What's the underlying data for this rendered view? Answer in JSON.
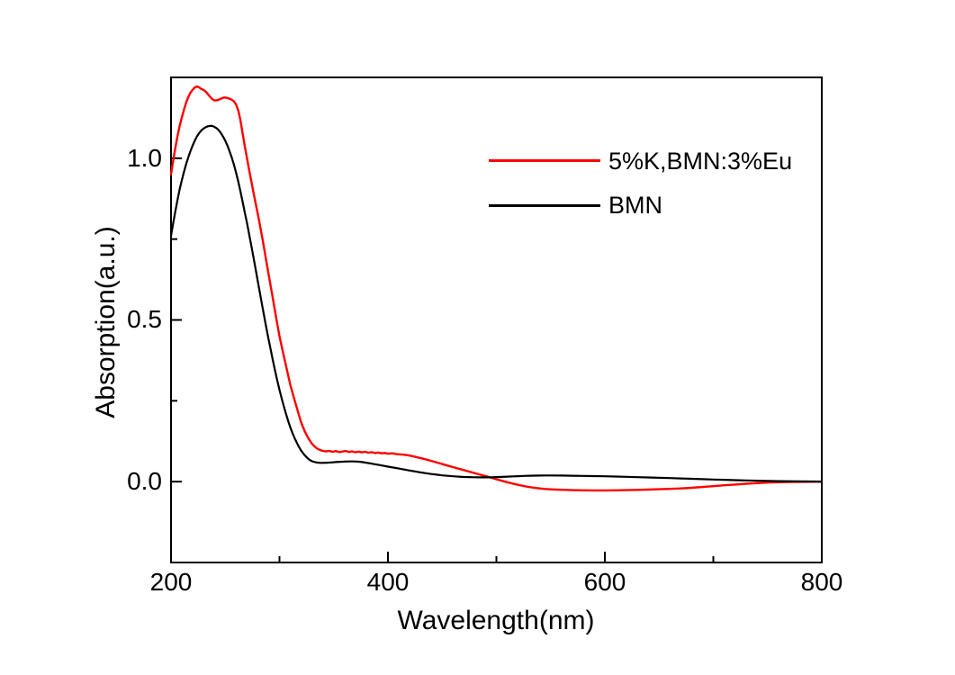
{
  "figure": {
    "background": "#ffffff",
    "axis_color": "#000000",
    "text_color": "#000000"
  },
  "legend": {
    "items": [
      {
        "label": "5%K,BMN:3%Eu",
        "color": "#ff0000"
      },
      {
        "label": "BMN",
        "color": "#000000"
      }
    ]
  },
  "chart_data": {
    "type": "line",
    "title": "",
    "xlabel": "Wavelength(nm)",
    "ylabel": "Absorption(a.u.)",
    "xlim": [
      200,
      800
    ],
    "ylim": [
      -0.25,
      1.25
    ],
    "grid": false,
    "legend_position": "inside upper right",
    "x_major_ticks": [
      {
        "value": 200,
        "label": "200"
      },
      {
        "value": 400,
        "label": "400"
      },
      {
        "value": 600,
        "label": "600"
      },
      {
        "value": 800,
        "label": "800"
      }
    ],
    "x_minor_ticks": [
      300,
      500,
      700
    ],
    "y_major_ticks": [
      {
        "value": 0.0,
        "label": "0.0"
      },
      {
        "value": 0.5,
        "label": "0.5"
      },
      {
        "value": 1.0,
        "label": "1.0"
      }
    ],
    "y_minor_ticks": [
      0.25,
      0.75
    ],
    "series": [
      {
        "name": "5%K,BMN:3%Eu",
        "color": "#ff0000",
        "points": [
          [
            200,
            0.95
          ],
          [
            202,
            0.992
          ],
          [
            204,
            1.032
          ],
          [
            206,
            1.068
          ],
          [
            208,
            1.1
          ],
          [
            210,
            1.127
          ],
          [
            212,
            1.151
          ],
          [
            214,
            1.173
          ],
          [
            216,
            1.19
          ],
          [
            218,
            1.203
          ],
          [
            220,
            1.212
          ],
          [
            222,
            1.219
          ],
          [
            224,
            1.222
          ],
          [
            226,
            1.219
          ],
          [
            228,
            1.214
          ],
          [
            230,
            1.211
          ],
          [
            232,
            1.206
          ],
          [
            234,
            1.198
          ],
          [
            236,
            1.19
          ],
          [
            238,
            1.183
          ],
          [
            240,
            1.179
          ],
          [
            242,
            1.179
          ],
          [
            244,
            1.181
          ],
          [
            246,
            1.184
          ],
          [
            248,
            1.187
          ],
          [
            250,
            1.188
          ],
          [
            252,
            1.186
          ],
          [
            254,
            1.184
          ],
          [
            256,
            1.181
          ],
          [
            258,
            1.176
          ],
          [
            260,
            1.166
          ],
          [
            262,
            1.148
          ],
          [
            264,
            1.118
          ],
          [
            266,
            1.078
          ],
          [
            268,
            1.038
          ],
          [
            270,
            1.0
          ],
          [
            272,
            0.964
          ],
          [
            274,
            0.929
          ],
          [
            276,
            0.894
          ],
          [
            278,
            0.861
          ],
          [
            280,
            0.828
          ],
          [
            282,
            0.793
          ],
          [
            284,
            0.757
          ],
          [
            286,
            0.719
          ],
          [
            288,
            0.68
          ],
          [
            290,
            0.641
          ],
          [
            292,
            0.602
          ],
          [
            294,
            0.564
          ],
          [
            296,
            0.525
          ],
          [
            298,
            0.487
          ],
          [
            300,
            0.45
          ],
          [
            302,
            0.419
          ],
          [
            304,
            0.389
          ],
          [
            306,
            0.359
          ],
          [
            308,
            0.329
          ],
          [
            310,
            0.3
          ],
          [
            312,
            0.275
          ],
          [
            314,
            0.251
          ],
          [
            316,
            0.228
          ],
          [
            318,
            0.205
          ],
          [
            320,
            0.183
          ],
          [
            322,
            0.166
          ],
          [
            324,
            0.151
          ],
          [
            326,
            0.138
          ],
          [
            328,
            0.127
          ],
          [
            330,
            0.117
          ],
          [
            332,
            0.11
          ],
          [
            334,
            0.104
          ],
          [
            336,
            0.1
          ],
          [
            338,
            0.097
          ],
          [
            340,
            0.095
          ],
          [
            343,
            0.0935
          ],
          [
            346,
            0.0952
          ],
          [
            349,
            0.0922
          ],
          [
            352,
            0.0945
          ],
          [
            355,
            0.0915
          ],
          [
            358,
            0.0932
          ],
          [
            361,
            0.0948
          ],
          [
            364,
            0.0918
          ],
          [
            367,
            0.0938
          ],
          [
            370,
            0.0908
          ],
          [
            373,
            0.0928
          ],
          [
            376,
            0.0905
          ],
          [
            379,
            0.0922
          ],
          [
            382,
            0.0895
          ],
          [
            385,
            0.0912
          ],
          [
            388,
            0.0885
          ],
          [
            391,
            0.0902
          ],
          [
            394,
            0.0875
          ],
          [
            397,
            0.0888
          ],
          [
            400,
            0.0865
          ],
          [
            404,
            0.0875
          ],
          [
            408,
            0.0852
          ],
          [
            412,
            0.0842
          ],
          [
            416,
            0.0828
          ],
          [
            420,
            0.0805
          ],
          [
            424,
            0.0778
          ],
          [
            428,
            0.0745
          ],
          [
            432,
            0.0712
          ],
          [
            436,
            0.0678
          ],
          [
            440,
            0.0641
          ],
          [
            444,
            0.0602
          ],
          [
            448,
            0.0563
          ],
          [
            452,
            0.0524
          ],
          [
            456,
            0.0487
          ],
          [
            460,
            0.0449
          ],
          [
            464,
            0.0412
          ],
          [
            468,
            0.0375
          ],
          [
            472,
            0.0338
          ],
          [
            476,
            0.0301
          ],
          [
            480,
            0.0264
          ],
          [
            484,
            0.0226
          ],
          [
            488,
            0.0188
          ],
          [
            492,
            0.0151
          ],
          [
            496,
            0.0113
          ],
          [
            500,
            0.0075
          ],
          [
            505,
            0.0028
          ],
          [
            510,
            -0.0018
          ],
          [
            515,
            -0.006
          ],
          [
            520,
            -0.0099
          ],
          [
            525,
            -0.0134
          ],
          [
            530,
            -0.0164
          ],
          [
            535,
            -0.019
          ],
          [
            540,
            -0.0211
          ],
          [
            545,
            -0.0227
          ],
          [
            550,
            -0.0238
          ],
          [
            555,
            -0.0246
          ],
          [
            560,
            -0.0252
          ],
          [
            570,
            -0.0262
          ],
          [
            580,
            -0.0268
          ],
          [
            590,
            -0.027
          ],
          [
            600,
            -0.027
          ],
          [
            610,
            -0.0267
          ],
          [
            620,
            -0.0262
          ],
          [
            630,
            -0.0255
          ],
          [
            640,
            -0.0246
          ],
          [
            650,
            -0.0236
          ],
          [
            660,
            -0.0224
          ],
          [
            670,
            -0.0209
          ],
          [
            680,
            -0.0189
          ],
          [
            690,
            -0.0165
          ],
          [
            700,
            -0.0139
          ],
          [
            710,
            -0.0113
          ],
          [
            720,
            -0.0089
          ],
          [
            730,
            -0.0066
          ],
          [
            740,
            -0.0046
          ],
          [
            750,
            -0.003
          ],
          [
            760,
            -0.0019
          ],
          [
            770,
            -0.0011
          ],
          [
            780,
            -0.0006
          ],
          [
            790,
            -0.0003
          ],
          [
            800,
            -0.0002
          ]
        ]
      },
      {
        "name": "BMN",
        "color": "#000000",
        "points": [
          [
            200,
            0.76
          ],
          [
            202,
            0.799
          ],
          [
            204,
            0.836
          ],
          [
            206,
            0.871
          ],
          [
            208,
            0.904
          ],
          [
            210,
            0.933
          ],
          [
            212,
            0.959
          ],
          [
            214,
            0.983
          ],
          [
            216,
            1.004
          ],
          [
            218,
            1.023
          ],
          [
            220,
            1.04
          ],
          [
            222,
            1.055
          ],
          [
            224,
            1.068
          ],
          [
            226,
            1.078
          ],
          [
            228,
            1.086
          ],
          [
            230,
            1.092
          ],
          [
            232,
            1.096
          ],
          [
            234,
            1.099
          ],
          [
            236,
            1.1
          ],
          [
            238,
            1.1
          ],
          [
            240,
            1.097
          ],
          [
            242,
            1.093
          ],
          [
            244,
            1.087
          ],
          [
            246,
            1.078
          ],
          [
            248,
            1.067
          ],
          [
            250,
            1.054
          ],
          [
            252,
            1.039
          ],
          [
            254,
            1.021
          ],
          [
            256,
            1.002
          ],
          [
            258,
            0.98
          ],
          [
            260,
            0.955
          ],
          [
            262,
            0.928
          ],
          [
            264,
            0.898
          ],
          [
            266,
            0.866
          ],
          [
            268,
            0.833
          ],
          [
            270,
            0.8
          ],
          [
            272,
            0.765
          ],
          [
            274,
            0.73
          ],
          [
            276,
            0.694
          ],
          [
            278,
            0.657
          ],
          [
            280,
            0.62
          ],
          [
            282,
            0.583
          ],
          [
            284,
            0.546
          ],
          [
            286,
            0.51
          ],
          [
            288,
            0.474
          ],
          [
            290,
            0.44
          ],
          [
            292,
            0.406
          ],
          [
            294,
            0.373
          ],
          [
            296,
            0.342
          ],
          [
            298,
            0.312
          ],
          [
            300,
            0.284
          ],
          [
            302,
            0.258
          ],
          [
            304,
            0.233
          ],
          [
            306,
            0.21
          ],
          [
            308,
            0.188
          ],
          [
            310,
            0.168
          ],
          [
            312,
            0.15
          ],
          [
            314,
            0.134
          ],
          [
            316,
            0.12
          ],
          [
            318,
            0.107
          ],
          [
            320,
            0.096
          ],
          [
            322,
            0.087
          ],
          [
            324,
            0.079
          ],
          [
            326,
            0.072
          ],
          [
            328,
            0.067
          ],
          [
            330,
            0.063
          ],
          [
            332,
            0.061
          ],
          [
            334,
            0.0595
          ],
          [
            336,
            0.0585
          ],
          [
            338,
            0.058
          ],
          [
            340,
            0.058
          ],
          [
            344,
            0.0585
          ],
          [
            348,
            0.0595
          ],
          [
            352,
            0.0605
          ],
          [
            356,
            0.0615
          ],
          [
            360,
            0.062
          ],
          [
            364,
            0.0625
          ],
          [
            368,
            0.0625
          ],
          [
            372,
            0.062
          ],
          [
            376,
            0.0605
          ],
          [
            380,
            0.0585
          ],
          [
            384,
            0.0565
          ],
          [
            388,
            0.054
          ],
          [
            392,
            0.0515
          ],
          [
            396,
            0.049
          ],
          [
            400,
            0.0465
          ],
          [
            405,
            0.0435
          ],
          [
            410,
            0.0405
          ],
          [
            415,
            0.0375
          ],
          [
            420,
            0.0345
          ],
          [
            425,
            0.0315
          ],
          [
            430,
            0.0285
          ],
          [
            435,
            0.026
          ],
          [
            440,
            0.0235
          ],
          [
            445,
            0.0215
          ],
          [
            450,
            0.0195
          ],
          [
            455,
            0.018
          ],
          [
            460,
            0.0165
          ],
          [
            465,
            0.0155
          ],
          [
            470,
            0.0145
          ],
          [
            475,
            0.014
          ],
          [
            480,
            0.0135
          ],
          [
            485,
            0.0133
          ],
          [
            490,
            0.0133
          ],
          [
            495,
            0.0135
          ],
          [
            500,
            0.014
          ],
          [
            505,
            0.0147
          ],
          [
            510,
            0.0155
          ],
          [
            515,
            0.0163
          ],
          [
            520,
            0.017
          ],
          [
            525,
            0.0177
          ],
          [
            530,
            0.0182
          ],
          [
            535,
            0.0186
          ],
          [
            540,
            0.0189
          ],
          [
            545,
            0.019
          ],
          [
            550,
            0.019
          ],
          [
            560,
            0.0188
          ],
          [
            570,
            0.0184
          ],
          [
            580,
            0.0178
          ],
          [
            590,
            0.0172
          ],
          [
            600,
            0.0165
          ],
          [
            610,
            0.0157
          ],
          [
            620,
            0.0148
          ],
          [
            630,
            0.0139
          ],
          [
            640,
            0.0129
          ],
          [
            650,
            0.0119
          ],
          [
            660,
            0.0109
          ],
          [
            670,
            0.0098
          ],
          [
            680,
            0.0088
          ],
          [
            690,
            0.0077
          ],
          [
            700,
            0.0067
          ],
          [
            710,
            0.0057
          ],
          [
            720,
            0.0047
          ],
          [
            730,
            0.0038
          ],
          [
            740,
            0.003
          ],
          [
            750,
            0.0023
          ],
          [
            760,
            0.0017
          ],
          [
            770,
            0.0012
          ],
          [
            780,
            0.0008
          ],
          [
            790,
            0.0004
          ],
          [
            800,
            0.0002
          ]
        ]
      }
    ]
  }
}
